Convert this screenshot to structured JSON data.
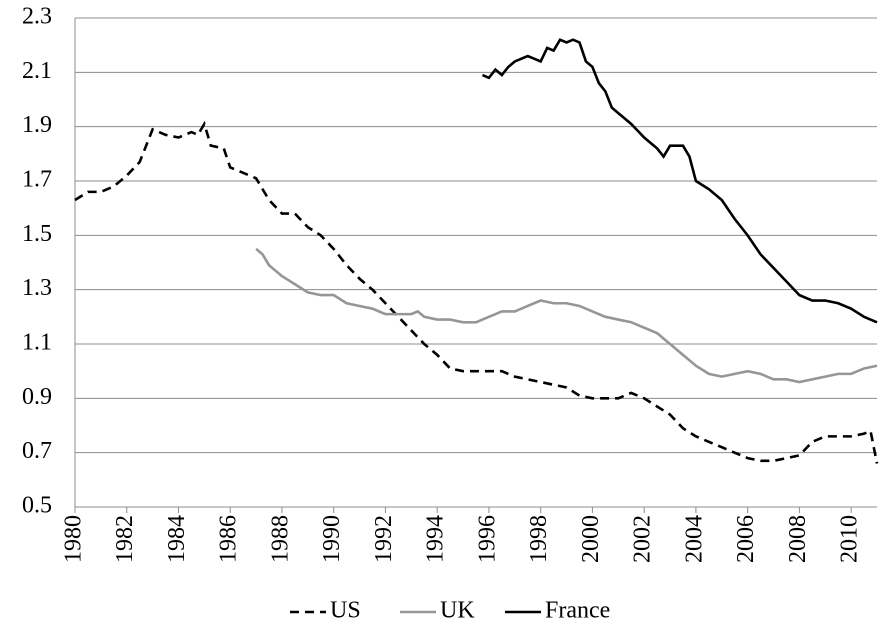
{
  "chart_data": {
    "type": "line",
    "xlim": [
      1980,
      2011
    ],
    "xticks": [
      1980,
      1982,
      1984,
      1986,
      1988,
      1990,
      1992,
      1994,
      1996,
      1998,
      2000,
      2002,
      2004,
      2006,
      2008,
      2010
    ],
    "ylim": [
      0.5,
      2.3
    ],
    "yticks": [
      0.5,
      0.7,
      0.9,
      1.1,
      1.3,
      1.5,
      1.7,
      1.9,
      2.1,
      2.3
    ],
    "grid": true,
    "legend": "bottom",
    "series": [
      {
        "name": "US",
        "color": "#000000",
        "dash": true,
        "x": [
          1980,
          1980.5,
          1981,
          1981.5,
          1982,
          1982.5,
          1983,
          1983.5,
          1984,
          1984.5,
          1984.75,
          1985,
          1985.25,
          1985.75,
          1986,
          1986.5,
          1987,
          1987.5,
          1988,
          1988.5,
          1989,
          1989.5,
          1990,
          1990.5,
          1991,
          1991.5,
          1992,
          1992.5,
          1993,
          1993.5,
          1994,
          1994.5,
          1995,
          1995.5,
          1996,
          1996.5,
          1997,
          1997.5,
          1998,
          1998.5,
          1999,
          1999.5,
          2000,
          2000.5,
          2001,
          2001.5,
          2002,
          2002.5,
          2003,
          2003.5,
          2004,
          2004.5,
          2005,
          2005.5,
          2006,
          2006.5,
          2007,
          2007.5,
          2008,
          2008.5,
          2009,
          2009.5,
          2010,
          2010.5,
          2010.75,
          2011
        ],
        "values": [
          1.63,
          1.66,
          1.66,
          1.68,
          1.72,
          1.77,
          1.89,
          1.87,
          1.86,
          1.88,
          1.87,
          1.91,
          1.83,
          1.82,
          1.75,
          1.73,
          1.71,
          1.63,
          1.58,
          1.58,
          1.53,
          1.5,
          1.45,
          1.39,
          1.34,
          1.3,
          1.25,
          1.2,
          1.15,
          1.1,
          1.06,
          1.01,
          1.0,
          1.0,
          1.0,
          1.0,
          0.98,
          0.97,
          0.96,
          0.95,
          0.94,
          0.91,
          0.9,
          0.9,
          0.9,
          0.92,
          0.9,
          0.87,
          0.84,
          0.79,
          0.76,
          0.74,
          0.72,
          0.7,
          0.68,
          0.67,
          0.67,
          0.68,
          0.69,
          0.74,
          0.76,
          0.76,
          0.76,
          0.77,
          0.78,
          0.66
        ]
      },
      {
        "name": "UK",
        "color": "#969696",
        "dash": false,
        "x": [
          1987,
          1987.25,
          1987.5,
          1988,
          1988.5,
          1989,
          1989.5,
          1990,
          1990.5,
          1991,
          1991.5,
          1992,
          1992.5,
          1993,
          1993.25,
          1993.5,
          1994,
          1994.5,
          1995,
          1995.5,
          1996,
          1996.5,
          1997,
          1997.5,
          1998,
          1998.5,
          1999,
          1999.5,
          2000,
          2000.5,
          2001,
          2001.5,
          2002,
          2002.5,
          2003,
          2003.5,
          2004,
          2004.5,
          2005,
          2005.5,
          2006,
          2006.5,
          2007,
          2007.5,
          2008,
          2008.5,
          2009,
          2009.5,
          2010,
          2010.5,
          2011
        ],
        "values": [
          1.45,
          1.43,
          1.39,
          1.35,
          1.32,
          1.29,
          1.28,
          1.28,
          1.25,
          1.24,
          1.23,
          1.21,
          1.21,
          1.21,
          1.22,
          1.2,
          1.19,
          1.19,
          1.18,
          1.18,
          1.2,
          1.22,
          1.22,
          1.24,
          1.26,
          1.25,
          1.25,
          1.24,
          1.22,
          1.2,
          1.19,
          1.18,
          1.16,
          1.14,
          1.1,
          1.06,
          1.02,
          0.99,
          0.98,
          0.99,
          1.0,
          0.99,
          0.97,
          0.97,
          0.96,
          0.97,
          0.98,
          0.99,
          0.99,
          1.01,
          1.02
        ]
      },
      {
        "name": "France",
        "color": "#000000",
        "dash": false,
        "x": [
          1995.75,
          1996,
          1996.25,
          1996.5,
          1996.75,
          1997,
          1997.5,
          1998,
          1998.25,
          1998.5,
          1998.75,
          1999,
          1999.25,
          1999.5,
          1999.75,
          2000,
          2000.25,
          2000.5,
          2000.75,
          2001,
          2001.5,
          2002,
          2002.5,
          2002.75,
          2003,
          2003.5,
          2003.75,
          2004,
          2004.5,
          2005,
          2005.5,
          2006,
          2006.5,
          2007,
          2007.5,
          2008,
          2008.5,
          2009,
          2009.5,
          2010,
          2010.5,
          2011
        ],
        "values": [
          2.09,
          2.08,
          2.11,
          2.09,
          2.12,
          2.14,
          2.16,
          2.14,
          2.19,
          2.18,
          2.22,
          2.21,
          2.22,
          2.21,
          2.14,
          2.12,
          2.06,
          2.03,
          1.97,
          1.95,
          1.91,
          1.86,
          1.82,
          1.79,
          1.83,
          1.83,
          1.79,
          1.7,
          1.67,
          1.63,
          1.56,
          1.5,
          1.43,
          1.38,
          1.33,
          1.28,
          1.26,
          1.26,
          1.25,
          1.23,
          1.2,
          1.18
        ]
      }
    ]
  }
}
